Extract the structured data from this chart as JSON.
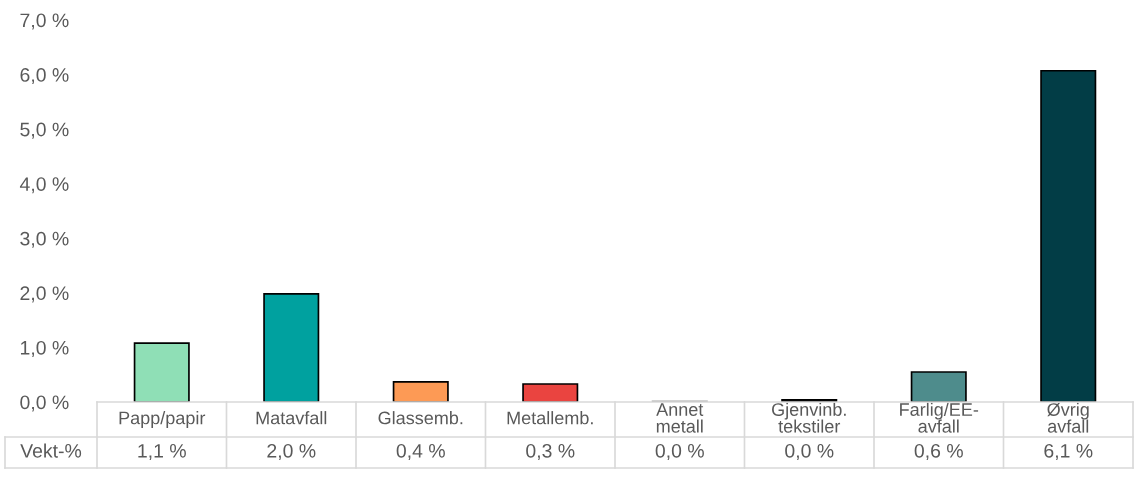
{
  "chart_data": {
    "type": "bar",
    "categories": [
      "Papp/papir",
      "Matavfall",
      "Glassemb.",
      "Metallemb.",
      "Annet metall",
      "Gjenvinb. tekstiler",
      "Farlig/EE-avfall",
      "Øvrig avfall"
    ],
    "series": [
      {
        "name": "Vekt-%",
        "colors": [
          "#8fdfb6",
          "#00a19f",
          "#fd9a55",
          "#ea4440",
          "#a6a6a6",
          "#1a1a1a",
          "#4e8c8c",
          "#023d46"
        ],
        "values": [
          1.08,
          1.98,
          0.37,
          0.33,
          0.01,
          0.04,
          0.55,
          6.07
        ],
        "value_labels": [
          "1,1 %",
          "2,0 %",
          "0,4 %",
          "0,3 %",
          "0,0 %",
          "0,0 %",
          "0,6 %",
          "6,1 %"
        ]
      }
    ],
    "ylim": [
      0,
      7
    ],
    "yticks": [
      {
        "value": 0,
        "label": "0,0 %"
      },
      {
        "value": 1,
        "label": "1,0 %"
      },
      {
        "value": 2,
        "label": "2,0 %"
      },
      {
        "value": 3,
        "label": "3,0 %"
      },
      {
        "value": 4,
        "label": "4,0 %"
      },
      {
        "value": 5,
        "label": "5,0 %"
      },
      {
        "value": 6,
        "label": "6,0 %"
      },
      {
        "value": 7,
        "label": "7,0 %"
      }
    ],
    "grid": false,
    "legend": false
  }
}
